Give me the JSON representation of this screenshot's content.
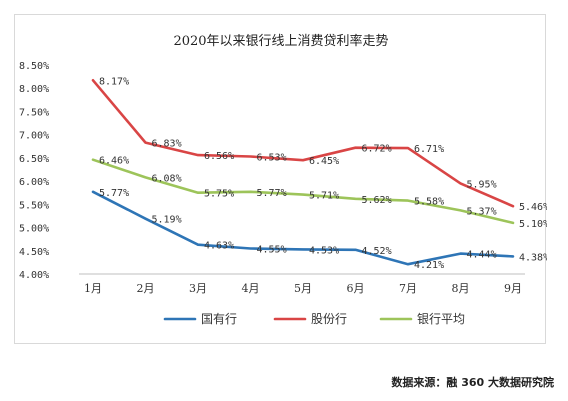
{
  "chart_data": {
    "type": "line",
    "title": "2020年以来银行线上消费贷利率走势",
    "categories": [
      "1月",
      "2月",
      "3月",
      "4月",
      "5月",
      "6月",
      "7月",
      "8月",
      "9月"
    ],
    "y_ticks": [
      "4.00%",
      "4.50%",
      "5.00%",
      "5.50%",
      "6.00%",
      "6.50%",
      "7.00%",
      "7.50%",
      "8.00%",
      "8.50%"
    ],
    "ylim": [
      4.0,
      8.5
    ],
    "grid": false,
    "legend_position": "bottom",
    "series": [
      {
        "name": "国有行",
        "color": "#2e75b6",
        "values": [
          5.77,
          5.19,
          4.63,
          4.55,
          4.53,
          4.52,
          4.21,
          4.44,
          4.38
        ],
        "labels": [
          "5.77%",
          "5.19%",
          "4.63%",
          "4.55%",
          "4.53%",
          "4.52%",
          "4.21%",
          "4.44%",
          "4.38%"
        ]
      },
      {
        "name": "股份行",
        "color": "#d94545",
        "values": [
          8.17,
          6.83,
          6.56,
          6.53,
          6.45,
          6.72,
          6.71,
          5.95,
          5.46
        ],
        "labels": [
          "8.17%",
          "6.83%",
          "6.56%",
          "6.53%",
          "6.45%",
          "6.72%",
          "6.71%",
          "5.95%",
          "5.46%"
        ]
      },
      {
        "name": "银行平均",
        "color": "#9dc45a",
        "values": [
          6.46,
          6.08,
          5.75,
          5.77,
          5.71,
          5.62,
          5.58,
          5.37,
          5.1
        ],
        "labels": [
          "6.46%",
          "6.08%",
          "5.75%",
          "5.77%",
          "5.71%",
          "5.62%",
          "5.58%",
          "5.37%",
          "5.10%"
        ]
      }
    ]
  },
  "source_text": "数据来源：融 360 大数据研究院"
}
